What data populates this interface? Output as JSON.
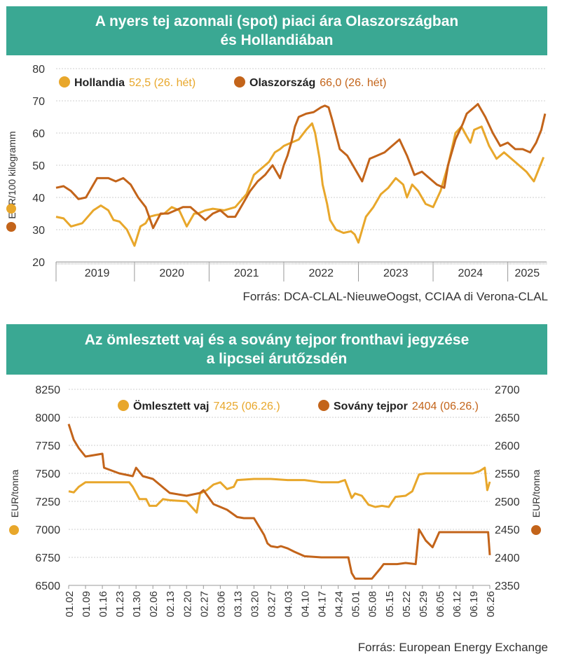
{
  "colors": {
    "banner": "#3aa893",
    "light": "#e8a72b",
    "dark": "#c3641a",
    "grid": "#cfcfcf"
  },
  "chart1_title": {
    "line1": "A nyers tej azonnali (spot) piaci ára Olaszországban",
    "line2": "és Hollandiában"
  },
  "chart1_source": "Forrás: DCA-CLAL-NieuweOogst, CCIAA di Verona-CLAL",
  "chart2_title": {
    "line1": "Az ömlesztett vaj és a sovány tejpor fronthavi jegyzése",
    "line2": "a lipcsei árutőzsdén"
  },
  "chart2_source": "Forrás: European Energy Exchange",
  "chart_data": [
    {
      "type": "line",
      "ylabel": "EUR/100 kilogramm",
      "ylim": [
        20,
        80
      ],
      "yticks": [
        20,
        30,
        40,
        50,
        60,
        70,
        80
      ],
      "x_years": [
        "2019",
        "2020",
        "2021",
        "2022",
        "2023",
        "2024",
        "2025"
      ],
      "x_range": [
        2018.95,
        2025.52
      ],
      "legend": [
        {
          "name": "Hollandia",
          "note": "52,5 (26. hét)"
        },
        {
          "name": "Olaszország",
          "note": "66,0 (26. hét)"
        }
      ],
      "series": [
        {
          "name": "Hollandia",
          "x": [
            2018.95,
            2019.05,
            2019.15,
            2019.3,
            2019.45,
            2019.55,
            2019.65,
            2019.72,
            2019.8,
            2019.9,
            2020.0,
            2020.08,
            2020.15,
            2020.2,
            2020.28,
            2020.4,
            2020.5,
            2020.6,
            2020.7,
            2020.8,
            2020.85,
            2020.95,
            2021.05,
            2021.2,
            2021.35,
            2021.5,
            2021.6,
            2021.7,
            2021.8,
            2021.88,
            2021.95,
            2022.0,
            2022.1,
            2022.2,
            2022.3,
            2022.38,
            2022.42,
            2022.48,
            2022.52,
            2022.58,
            2022.62,
            2022.7,
            2022.8,
            2022.9,
            2022.95,
            2023.0,
            2023.1,
            2023.2,
            2023.3,
            2023.4,
            2023.5,
            2023.6,
            2023.65,
            2023.72,
            2023.8,
            2023.9,
            2024.0,
            2024.1,
            2024.2,
            2024.3,
            2024.38,
            2024.45,
            2024.5,
            2024.55,
            2024.65,
            2024.75,
            2024.85,
            2024.95,
            2025.05,
            2025.15,
            2025.25,
            2025.35,
            2025.48
          ],
          "y": [
            34,
            33.5,
            31,
            32,
            36,
            37.5,
            36,
            33,
            32.5,
            30,
            25,
            31,
            32,
            34,
            34.5,
            35,
            37,
            36,
            31,
            35,
            35,
            36,
            36.5,
            36,
            37,
            41,
            47,
            49,
            51,
            54,
            55,
            56,
            57,
            58,
            61,
            63,
            60,
            52,
            44,
            38,
            33,
            30,
            29,
            29.5,
            28.5,
            26,
            34,
            37,
            41,
            43,
            46,
            44,
            40,
            44,
            42,
            38,
            37,
            42,
            50,
            60,
            62,
            59,
            57,
            61,
            62,
            56,
            52,
            54,
            52,
            50,
            48,
            45,
            52.5
          ]
        },
        {
          "name": "Olaszország",
          "x": [
            2018.95,
            2019.05,
            2019.15,
            2019.25,
            2019.35,
            2019.5,
            2019.65,
            2019.75,
            2019.85,
            2019.95,
            2020.05,
            2020.15,
            2020.25,
            2020.35,
            2020.45,
            2020.55,
            2020.65,
            2020.75,
            2020.85,
            2020.95,
            2021.05,
            2021.15,
            2021.25,
            2021.35,
            2021.45,
            2021.55,
            2021.65,
            2021.75,
            2021.85,
            2021.95,
            2022.0,
            2022.05,
            2022.1,
            2022.15,
            2022.2,
            2022.3,
            2022.4,
            2022.5,
            2022.55,
            2022.6,
            2022.65,
            2022.75,
            2022.85,
            2022.95,
            2023.05,
            2023.15,
            2023.25,
            2023.35,
            2023.45,
            2023.55,
            2023.65,
            2023.7,
            2023.75,
            2023.85,
            2023.95,
            2024.05,
            2024.15,
            2024.2,
            2024.3,
            2024.4,
            2024.45,
            2024.55,
            2024.6,
            2024.7,
            2024.8,
            2024.9,
            2025.0,
            2025.1,
            2025.2,
            2025.3,
            2025.38,
            2025.45,
            2025.5
          ],
          "y": [
            43,
            43.5,
            42,
            39.5,
            40,
            46,
            46,
            45,
            46,
            44,
            40,
            37,
            30.5,
            35,
            35,
            36,
            37,
            37,
            35,
            33,
            35,
            36,
            34,
            34,
            38,
            42,
            45,
            47,
            50,
            46,
            50,
            53,
            57,
            62,
            65,
            66,
            66.5,
            68,
            68.5,
            68,
            64,
            55,
            53,
            49,
            45,
            52,
            53,
            54,
            56,
            58,
            53,
            50,
            47,
            48,
            46,
            44,
            43,
            50,
            58,
            63,
            66,
            68,
            69,
            65,
            60,
            56,
            57,
            55,
            55,
            54,
            57,
            61,
            66
          ]
        }
      ]
    },
    {
      "type": "line",
      "ylabel": "EUR/tonna",
      "ylabel_right": "EUR/tonna",
      "ylim": [
        6500,
        8250
      ],
      "yticks": [
        6500,
        6750,
        7000,
        7250,
        7500,
        7750,
        8000,
        8250
      ],
      "ylim_right": [
        2350,
        2700
      ],
      "yticks_right": [
        2350,
        2400,
        2450,
        2500,
        2550,
        2600,
        2650,
        2700
      ],
      "x_range": [
        0,
        25
      ],
      "categories": [
        "01.02",
        "01.09",
        "01.16",
        "01.23",
        "01.30",
        "02.06",
        "02.13",
        "02.20",
        "02.27",
        "03.06",
        "03.13",
        "03.20",
        "03.27",
        "04.03",
        "04.10",
        "04.17",
        "04.24",
        "05.01",
        "05.08",
        "05.15",
        "05.22",
        "05.29",
        "06.05",
        "06.12",
        "06.19",
        "06.26"
      ],
      "legend": [
        {
          "name": "Ömlesztett vaj",
          "note": "7425 (06.26.)"
        },
        {
          "name": "Sovány tejpor",
          "note": "2404 (06.26.)"
        }
      ],
      "series": [
        {
          "name": "Ömlesztett vaj",
          "axis": "left",
          "x": [
            0,
            0.3,
            0.6,
            1,
            2,
            3,
            3.6,
            3.8,
            4.2,
            4.6,
            4.8,
            5.2,
            5.6,
            6,
            7,
            7.6,
            7.8,
            8.2,
            8.6,
            9,
            9.4,
            9.8,
            10,
            11,
            12,
            13,
            14,
            15,
            16,
            16.4,
            16.8,
            17,
            17.4,
            17.8,
            18.2,
            18.6,
            19,
            19.4,
            20,
            20.4,
            20.8,
            21.2,
            21.4,
            22,
            23,
            24,
            24.4,
            24.7,
            24.85,
            25
          ],
          "y": [
            7340,
            7330,
            7380,
            7420,
            7420,
            7420,
            7420,
            7380,
            7270,
            7270,
            7210,
            7210,
            7270,
            7260,
            7250,
            7150,
            7320,
            7350,
            7400,
            7420,
            7360,
            7380,
            7440,
            7450,
            7450,
            7440,
            7440,
            7420,
            7420,
            7440,
            7280,
            7320,
            7300,
            7220,
            7200,
            7210,
            7200,
            7290,
            7300,
            7340,
            7490,
            7500,
            7500,
            7500,
            7500,
            7500,
            7520,
            7550,
            7350,
            7425
          ]
        },
        {
          "name": "Sovány tejpor",
          "axis": "right",
          "x": [
            0,
            0.3,
            0.6,
            1,
            2,
            2.1,
            3,
            3.8,
            4,
            4.4,
            5,
            6,
            7,
            7.8,
            8,
            8.6,
            9,
            9.4,
            10,
            10.4,
            11,
            11.6,
            11.8,
            12,
            12.4,
            12.6,
            13,
            13.4,
            14,
            15,
            16,
            16.6,
            16.8,
            17,
            17.5,
            18,
            18.5,
            18.7,
            19,
            19.5,
            20,
            20.6,
            20.8,
            21.2,
            21.6,
            22,
            22.5,
            23,
            24,
            24.4,
            24.9,
            25
          ],
          "y": [
            2638,
            2610,
            2595,
            2580,
            2585,
            2560,
            2550,
            2545,
            2560,
            2545,
            2540,
            2515,
            2510,
            2515,
            2520,
            2495,
            2490,
            2485,
            2472,
            2470,
            2470,
            2440,
            2425,
            2420,
            2418,
            2420,
            2416,
            2410,
            2402,
            2400,
            2400,
            2400,
            2372,
            2362,
            2362,
            2362,
            2380,
            2388,
            2388,
            2388,
            2390,
            2388,
            2450,
            2430,
            2418,
            2445,
            2445,
            2445,
            2445,
            2445,
            2445,
            2404
          ]
        }
      ]
    }
  ]
}
